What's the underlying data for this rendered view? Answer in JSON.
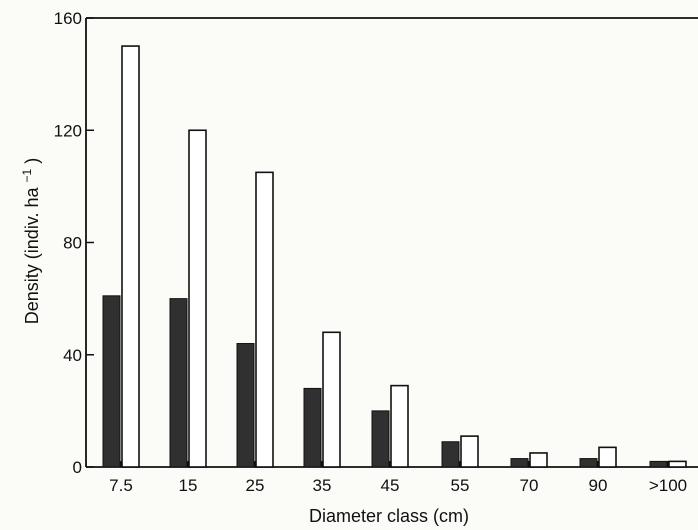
{
  "chart_data": {
    "type": "bar",
    "title": "",
    "xlabel": "Diameter class (cm)",
    "ylabel": {
      "prefix": "Density (indiv. ha",
      "exponent": "−1",
      "suffix": ")"
    },
    "categories": [
      "7.5",
      "15",
      "25",
      "35",
      "45",
      "55",
      "70",
      "90",
      ">100"
    ],
    "series": [
      {
        "values": [
          61,
          60,
          44,
          28,
          20,
          9,
          3,
          3,
          2
        ],
        "color": "#303030"
      },
      {
        "values": [
          150,
          120,
          105,
          48,
          29,
          11,
          5,
          7,
          2
        ],
        "color": "#ffffff"
      }
    ],
    "ylim": [
      0,
      160
    ],
    "yticks": [
      0,
      40,
      80,
      120,
      160
    ],
    "grid": false,
    "legend": "none"
  }
}
